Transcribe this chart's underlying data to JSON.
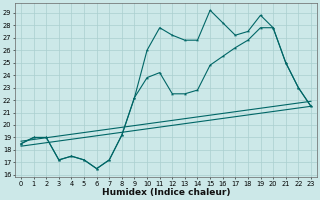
{
  "title": "",
  "xlabel": "Humidex (Indice chaleur)",
  "bg_color": "#cce8e8",
  "grid_color": "#aacfcf",
  "line_color": "#006666",
  "xlim": [
    -0.5,
    23.5
  ],
  "ylim": [
    15.8,
    29.8
  ],
  "yticks": [
    16,
    17,
    18,
    19,
    20,
    21,
    22,
    23,
    24,
    25,
    26,
    27,
    28,
    29
  ],
  "xticks": [
    0,
    1,
    2,
    3,
    4,
    5,
    6,
    7,
    8,
    9,
    10,
    11,
    12,
    13,
    14,
    15,
    16,
    17,
    18,
    19,
    20,
    21,
    22,
    23
  ],
  "line1_x": [
    0,
    1,
    2,
    3,
    4,
    5,
    6,
    7,
    8,
    9,
    10,
    11,
    12,
    13,
    14,
    15,
    16,
    17,
    18,
    19,
    20,
    21,
    22,
    23
  ],
  "line1_y": [
    18.5,
    19.0,
    19.0,
    17.2,
    17.5,
    17.2,
    16.5,
    17.2,
    19.2,
    22.2,
    26.0,
    27.8,
    27.2,
    26.8,
    26.8,
    29.2,
    28.2,
    27.2,
    27.5,
    28.8,
    27.8,
    25.0,
    23.0,
    21.5
  ],
  "line2_x": [
    0,
    1,
    2,
    3,
    4,
    5,
    6,
    7,
    8,
    9,
    10,
    11,
    12,
    13,
    14,
    15,
    16,
    17,
    18,
    19,
    20,
    21,
    22,
    23
  ],
  "line2_y": [
    18.5,
    19.0,
    19.0,
    17.2,
    17.5,
    17.2,
    16.5,
    17.2,
    19.2,
    22.2,
    23.8,
    24.2,
    22.5,
    22.5,
    22.8,
    24.8,
    25.5,
    26.2,
    26.8,
    27.8,
    27.8,
    25.0,
    23.0,
    21.5
  ],
  "line3_y_start": 18.3,
  "line3_y_end": 21.5,
  "line4_y_start": 18.7,
  "line4_y_end": 21.9,
  "xlabel_fontsize": 6.5,
  "tick_fontsize": 4.8,
  "marker_size": 2.5
}
